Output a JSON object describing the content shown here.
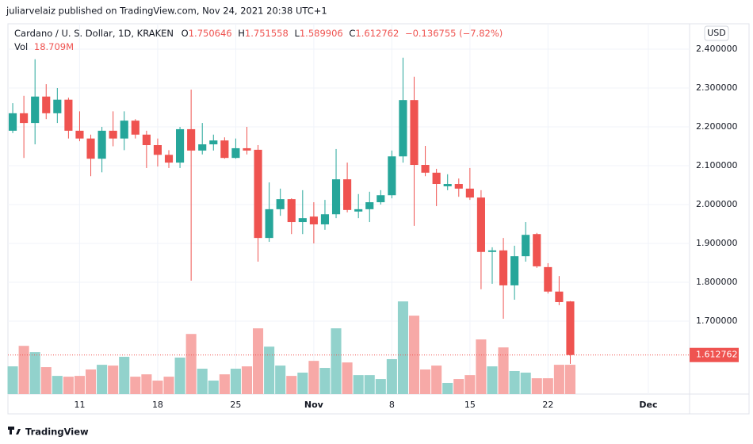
{
  "publisher": "juliarvelaiz published on TradingView.com, Nov 24, 2021 20:38 UTC+1",
  "footer": "TradingView",
  "chart_data": {
    "type": "candlestick",
    "title": "Cardano / U. S. Dollar, 1D, KRAKEN",
    "currency_button": "USD",
    "volume_title": "Vol",
    "volume_last_label": "18.709M",
    "change_label": "−0.136755 (−7.82%)",
    "up_color": "#26a69a",
    "down_color": "#ef5350",
    "up_volume_color": "#92d2cc",
    "down_volume_color": "#f7a9a7",
    "open": [
      2.19,
      2.235,
      2.21,
      2.278,
      2.235,
      2.27,
      2.19,
      2.17,
      2.118,
      2.19,
      2.17,
      2.216,
      2.18,
      2.153,
      2.128,
      2.108,
      2.194,
      2.139,
      2.155,
      2.165,
      2.12,
      2.145,
      2.141,
      1.914,
      1.988,
      2.014,
      1.955,
      1.969,
      1.949,
      1.975,
      2.065,
      1.982,
      1.988,
      2.006,
      2.024,
      2.124,
      2.269,
      2.102,
      2.082,
      2.047,
      2.053,
      2.041,
      2.018,
      1.878,
      1.882,
      1.792,
      1.867,
      1.924,
      1.839,
      1.776,
      1.750646
    ],
    "high": [
      2.261,
      2.28,
      2.374,
      2.31,
      2.3,
      2.275,
      2.24,
      2.18,
      2.2,
      2.24,
      2.24,
      2.22,
      2.19,
      2.17,
      2.14,
      2.2,
      2.296,
      2.21,
      2.18,
      2.173,
      2.17,
      2.2,
      2.153,
      2.057,
      2.041,
      2.016,
      2.037,
      2.006,
      2.012,
      2.143,
      2.108,
      2.027,
      2.033,
      2.037,
      2.139,
      2.378,
      2.329,
      2.151,
      2.092,
      2.078,
      2.067,
      2.094,
      2.037,
      1.89,
      1.914,
      1.894,
      1.955,
      1.927,
      1.849,
      1.816,
      1.751558
    ],
    "low": [
      2.184,
      2.12,
      2.155,
      2.22,
      2.21,
      2.17,
      2.163,
      2.073,
      2.083,
      2.15,
      2.14,
      2.17,
      2.094,
      2.098,
      2.094,
      2.094,
      1.804,
      2.129,
      2.139,
      2.118,
      2.118,
      2.129,
      1.853,
      1.904,
      1.971,
      1.924,
      1.924,
      1.9,
      1.935,
      1.965,
      1.98,
      1.965,
      1.955,
      2.0,
      2.016,
      2.108,
      1.945,
      2.073,
      1.996,
      2.037,
      2.02,
      2.012,
      1.782,
      1.796,
      1.706,
      1.755,
      1.853,
      1.837,
      1.771,
      1.741,
      1.589906
    ],
    "close": [
      2.235,
      2.21,
      2.278,
      2.235,
      2.27,
      2.19,
      2.17,
      2.118,
      2.19,
      2.17,
      2.216,
      2.18,
      2.153,
      2.128,
      2.108,
      2.194,
      2.139,
      2.155,
      2.165,
      2.12,
      2.145,
      2.139,
      1.914,
      1.988,
      2.014,
      1.955,
      1.965,
      1.949,
      1.975,
      2.065,
      1.986,
      1.988,
      2.006,
      2.024,
      2.124,
      2.269,
      2.102,
      2.082,
      2.053,
      2.053,
      2.041,
      2.018,
      1.878,
      1.882,
      1.792,
      1.867,
      1.922,
      1.841,
      1.776,
      1.749,
      1.612762
    ],
    "volume": [
      17.7,
      30.8,
      26.8,
      17.2,
      11.6,
      11.1,
      11.6,
      15.7,
      18.7,
      18.2,
      23.8,
      11.1,
      12.6,
      8.6,
      11.1,
      23.3,
      38.4,
      16.2,
      8.6,
      12.6,
      16.2,
      17.7,
      42.0,
      30.3,
      18.2,
      11.6,
      13.7,
      21.2,
      16.7,
      42.0,
      20.2,
      12.1,
      12.1,
      9.6,
      22.3,
      59.2,
      50.1,
      15.7,
      18.2,
      7.1,
      9.6,
      12.1,
      34.9,
      17.7,
      29.8,
      14.7,
      13.7,
      10.1,
      10.1,
      18.7,
      18.709
    ],
    "xlim": [
      -0.43,
      60.7
    ],
    "xticks": [
      {
        "value": 6,
        "label": "11"
      },
      {
        "value": 13,
        "label": "18"
      },
      {
        "value": 20,
        "label": "25"
      },
      {
        "value": 27,
        "label": "Nov"
      },
      {
        "value": 34,
        "label": "8"
      },
      {
        "value": 41,
        "label": "15"
      },
      {
        "value": 48,
        "label": "22"
      },
      {
        "value": 57,
        "label": "Dec"
      }
    ],
    "ylim": [
      1.5122,
      2.4653
    ],
    "yticks": [
      {
        "value": 2.4,
        "label": "2.400000"
      },
      {
        "value": 2.3,
        "label": "2.300000"
      },
      {
        "value": 2.2,
        "label": "2.200000"
      },
      {
        "value": 2.1,
        "label": "2.100000"
      },
      {
        "value": 2.0,
        "label": "2.000000"
      },
      {
        "value": 1.9,
        "label": "1.900000"
      },
      {
        "value": 1.8,
        "label": "1.800000"
      },
      {
        "value": 1.7,
        "label": "1.700000"
      }
    ],
    "volume_ylim": [
      0,
      76
    ],
    "grid": true
  }
}
